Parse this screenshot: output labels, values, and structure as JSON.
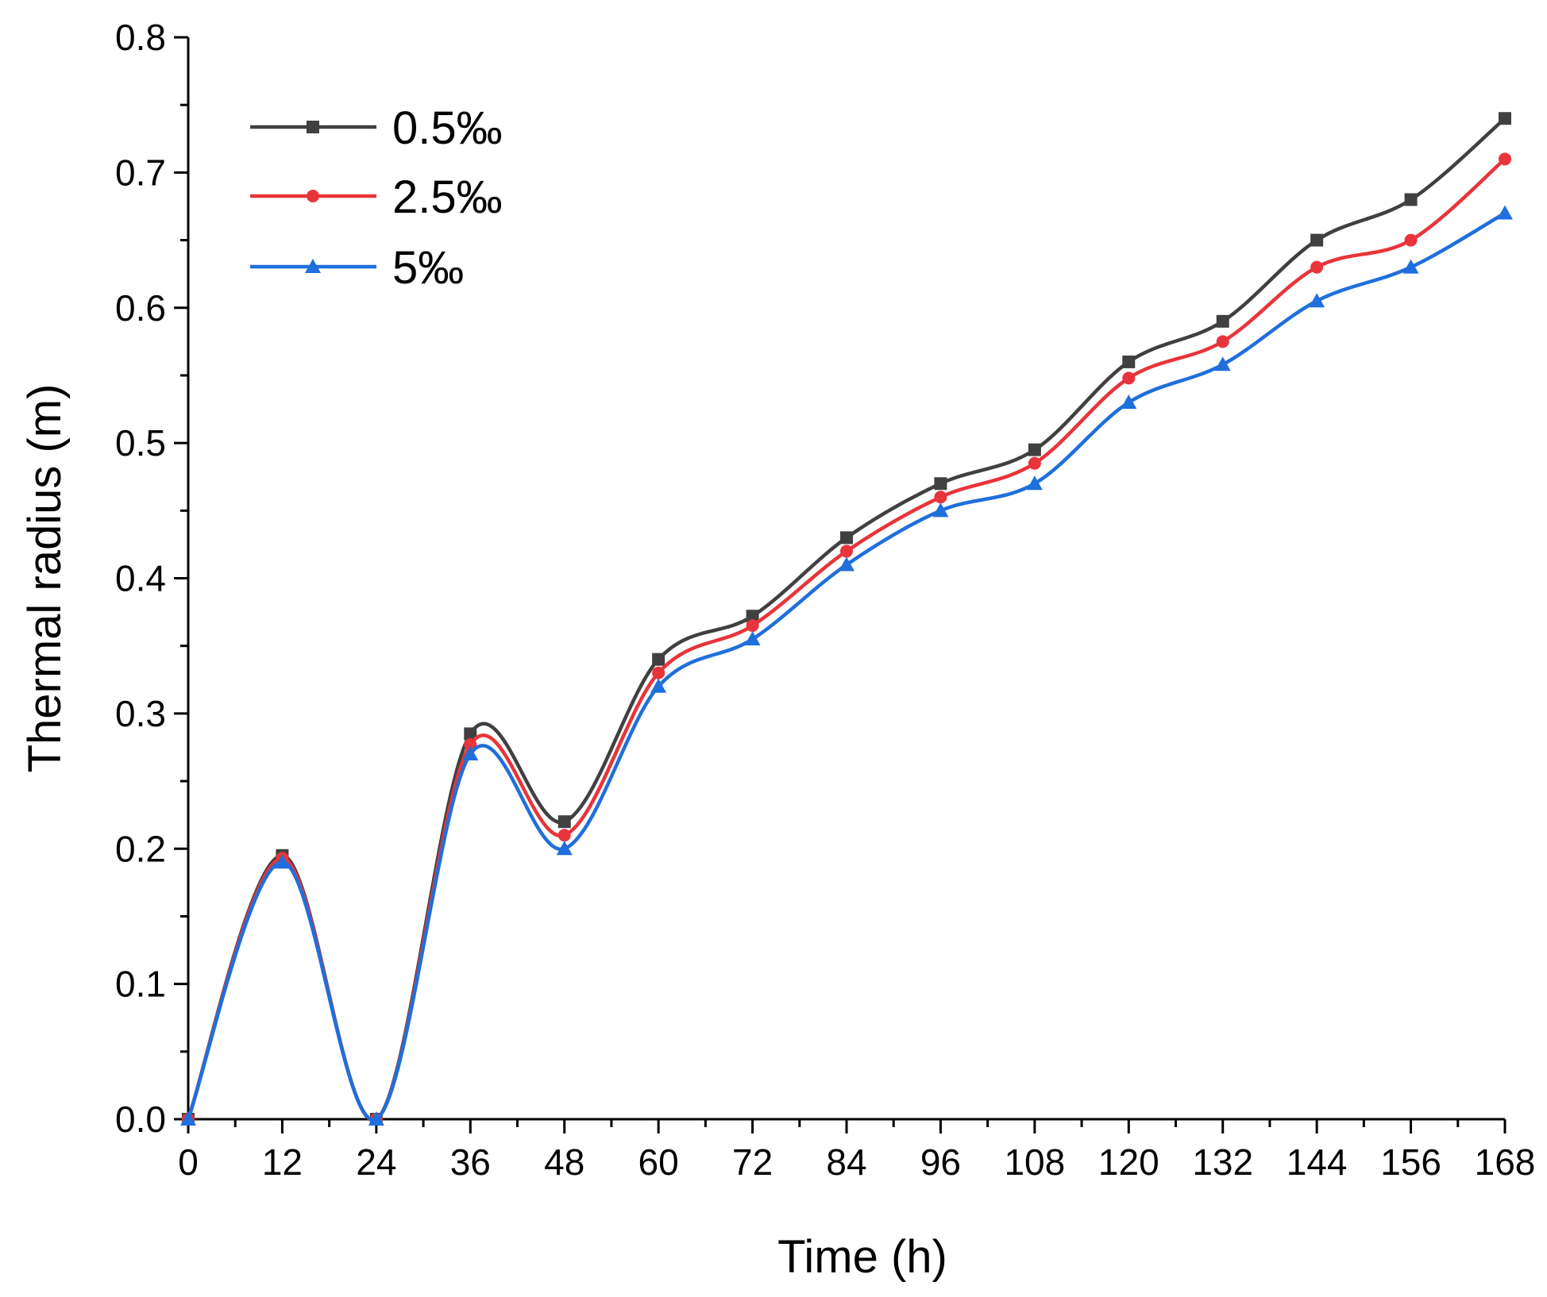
{
  "chart_data": {
    "type": "line",
    "title": "",
    "xlabel": "Time (h)",
    "ylabel": "Thermal radius (m)",
    "xlim": [
      0,
      168
    ],
    "ylim": [
      0,
      0.8
    ],
    "x_ticks": [
      0,
      12,
      24,
      36,
      48,
      60,
      72,
      84,
      96,
      108,
      120,
      132,
      144,
      156,
      168
    ],
    "x_tick_labels": [
      "0",
      "12",
      "24",
      "36",
      "48",
      "60",
      "72",
      "84",
      "96",
      "108",
      "120",
      "132",
      "144",
      "156",
      "168"
    ],
    "y_ticks": [
      0,
      0.1,
      0.2,
      0.3,
      0.4,
      0.5,
      0.6,
      0.7,
      0.8
    ],
    "y_tick_labels": [
      "0.0",
      "0.1",
      "0.2",
      "0.3",
      "0.4",
      "0.5",
      "0.6",
      "0.7",
      "0.8"
    ],
    "grid": false,
    "legend_position": "top-left",
    "x": [
      0,
      12,
      24,
      36,
      48,
      60,
      72,
      84,
      96,
      108,
      120,
      132,
      144,
      156,
      168
    ],
    "series": [
      {
        "name": "0.5‰",
        "color": "#404040",
        "marker": "square",
        "values": [
          0,
          0.195,
          0,
          0.285,
          0.22,
          0.34,
          0.372,
          0.43,
          0.47,
          0.495,
          0.56,
          0.59,
          0.65,
          0.68,
          0.74
        ]
      },
      {
        "name": "2.5‰",
        "color": "#e8343a",
        "marker": "circle",
        "values": [
          0,
          0.193,
          0,
          0.277,
          0.21,
          0.33,
          0.365,
          0.42,
          0.46,
          0.485,
          0.548,
          0.575,
          0.63,
          0.65,
          0.71
        ]
      },
      {
        "name": "5‰",
        "color": "#1f6fdc",
        "marker": "triangle",
        "values": [
          0,
          0.19,
          0,
          0.27,
          0.2,
          0.32,
          0.355,
          0.41,
          0.45,
          0.47,
          0.53,
          0.558,
          0.605,
          0.63,
          0.67
        ]
      }
    ]
  }
}
